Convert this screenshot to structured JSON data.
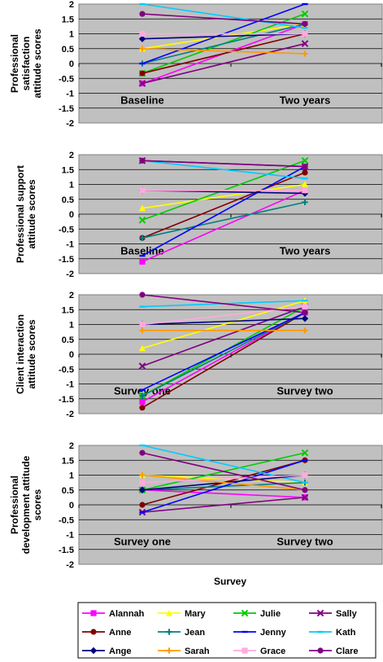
{
  "chart_data": {
    "type": "line",
    "x_axis_label": "Survey",
    "series_names": [
      "Alannah",
      "Mary",
      "Julie",
      "Sally",
      "Anne",
      "Jean",
      "Jenny",
      "Kath",
      "Ange",
      "Sarah",
      "Grace",
      "Clare"
    ],
    "colors": {
      "Alannah": "#ff00ff",
      "Mary": "#ffff00",
      "Julie": "#00cc00",
      "Sally": "#800080",
      "Anne": "#800000",
      "Jean": "#008080",
      "Jenny": "#0000ff",
      "Kath": "#00ccff",
      "Ange": "#000080",
      "Sarah": "#ff9900",
      "Grace": "#ffaadd",
      "Clare": "#800080"
    },
    "markers": {
      "Alannah": "square",
      "Mary": "triangle",
      "Julie": "x",
      "Sally": "x",
      "Anne": "circle",
      "Jean": "plus",
      "Jenny": "dash",
      "Kath": "dash",
      "Ange": "diamond",
      "Sarah": "plus",
      "Grace": "square",
      "Clare": "circle"
    },
    "legend_position": "bottom",
    "panels": [
      {
        "ylabel": "Professional satisfaction attitude scores",
        "categories": [
          "Baseline",
          "Two years"
        ],
        "ylim": [
          -2,
          2
        ],
        "yticks": [
          "2",
          "1.5",
          "1",
          "0.5",
          "0",
          "-0.5",
          "-1",
          "-1.5",
          "-2"
        ],
        "series": [
          {
            "name": "Alannah",
            "values": [
              -0.67,
              1.33
            ]
          },
          {
            "name": "Mary",
            "values": [
              0.5,
              1.33
            ]
          },
          {
            "name": "Julie",
            "values": [
              -0.33,
              1.67
            ]
          },
          {
            "name": "Sally",
            "values": [
              -0.67,
              0.67
            ]
          },
          {
            "name": "Anne",
            "values": [
              -0.33,
              1.0
            ]
          },
          {
            "name": "Jean",
            "values": [
              0.0,
              1.33
            ]
          },
          {
            "name": "Jenny",
            "values": [
              0.0,
              2.0
            ]
          },
          {
            "name": "Kath",
            "values": [
              2.0,
              1.2
            ]
          },
          {
            "name": "Ange",
            "values": [
              0.83,
              1.0
            ]
          },
          {
            "name": "Sarah",
            "values": [
              0.5,
              0.33
            ]
          },
          {
            "name": "Grace",
            "values": [
              1.0,
              1.0
            ]
          },
          {
            "name": "Clare",
            "values": [
              1.67,
              1.33
            ]
          }
        ]
      },
      {
        "ylabel": "Professional support attitude scores",
        "categories": [
          "Baseline",
          "Two years"
        ],
        "ylim": [
          -2,
          2
        ],
        "yticks": [
          "2",
          "1.5",
          "1",
          "0.5",
          "0",
          "-0.5",
          "-1",
          "-1.5",
          "-2"
        ],
        "series": [
          {
            "name": "Alannah",
            "values": [
              -1.6,
              0.8
            ]
          },
          {
            "name": "Mary",
            "values": [
              0.2,
              1.0
            ]
          },
          {
            "name": "Julie",
            "values": [
              -0.2,
              1.8
            ]
          },
          {
            "name": "Sally",
            "values": [
              1.8,
              1.6
            ]
          },
          {
            "name": "Anne",
            "values": [
              -0.8,
              1.4
            ]
          },
          {
            "name": "Jean",
            "values": [
              -0.8,
              0.4
            ]
          },
          {
            "name": "Jenny",
            "values": [
              -1.4,
              1.6
            ]
          },
          {
            "name": "Kath",
            "values": [
              1.8,
              1.2
            ]
          },
          {
            "name": "Ange",
            "values": [
              0.8,
              0.7
            ]
          },
          {
            "name": "Sarah",
            "values": [
              0.8,
              0.8
            ]
          },
          {
            "name": "Grace",
            "values": [
              0.8,
              0.8
            ]
          },
          {
            "name": "Clare",
            "values": [
              1.8,
              1.6
            ]
          }
        ]
      },
      {
        "ylabel": "Client interaction attitude scores",
        "categories": [
          "Survey one",
          "Survey two"
        ],
        "ylim": [
          -2,
          2
        ],
        "yticks": [
          "2",
          "1.5",
          "1",
          "0.5",
          "0",
          "-0.5",
          "-1",
          "-1.5",
          "-2"
        ],
        "series": [
          {
            "name": "Alannah",
            "values": [
              -1.6,
              1.4
            ]
          },
          {
            "name": "Mary",
            "values": [
              0.2,
              1.8
            ]
          },
          {
            "name": "Julie",
            "values": [
              -1.4,
              1.6
            ]
          },
          {
            "name": "Sally",
            "values": [
              -0.4,
              1.6
            ]
          },
          {
            "name": "Anne",
            "values": [
              -1.8,
              1.4
            ]
          },
          {
            "name": "Jean",
            "values": [
              -1.4,
              1.4
            ]
          },
          {
            "name": "Jenny",
            "values": [
              -1.2,
              1.4
            ]
          },
          {
            "name": "Kath",
            "values": [
              1.6,
              1.8
            ]
          },
          {
            "name": "Ange",
            "values": [
              1.0,
              1.2
            ]
          },
          {
            "name": "Sarah",
            "values": [
              0.8,
              0.8
            ]
          },
          {
            "name": "Grace",
            "values": [
              1.0,
              1.6
            ]
          },
          {
            "name": "Clare",
            "values": [
              2.0,
              1.4
            ]
          }
        ]
      },
      {
        "ylabel": "Professional development attitude scores",
        "categories": [
          "Survey one",
          "Survey two"
        ],
        "ylim": [
          -2,
          2
        ],
        "yticks": [
          "2",
          "1.5",
          "1",
          "0.5",
          "0",
          "-0.5",
          "-1",
          "-1.5",
          "-2"
        ],
        "series": [
          {
            "name": "Alannah",
            "values": [
              0.5,
              0.25
            ]
          },
          {
            "name": "Mary",
            "values": [
              1.0,
              0.75
            ]
          },
          {
            "name": "Julie",
            "values": [
              0.5,
              1.75
            ]
          },
          {
            "name": "Sally",
            "values": [
              -0.25,
              0.25
            ]
          },
          {
            "name": "Anne",
            "values": [
              0.0,
              1.5
            ]
          },
          {
            "name": "Jean",
            "values": [
              0.5,
              0.75
            ]
          },
          {
            "name": "Jenny",
            "values": [
              -0.25,
              1.5
            ]
          },
          {
            "name": "Kath",
            "values": [
              2.0,
              0.75
            ]
          },
          {
            "name": "Ange",
            "values": [
              0.5,
              1.0
            ]
          },
          {
            "name": "Sarah",
            "values": [
              1.0,
              0.5
            ]
          },
          {
            "name": "Grace",
            "values": [
              0.75,
              1.0
            ]
          },
          {
            "name": "Clare",
            "values": [
              1.75,
              0.5
            ]
          }
        ]
      }
    ]
  }
}
